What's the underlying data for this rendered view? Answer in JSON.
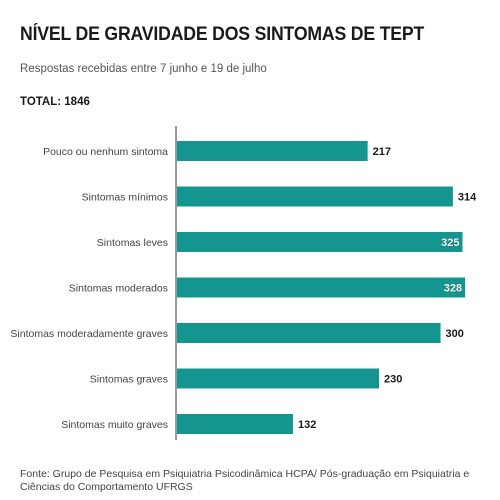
{
  "header": {
    "title": "NÍVEL DE GRAVIDADE DOS SINTOMAS DE TEPT",
    "subtitle": "Respostas recebidas entre 7 junho e 19 de julho",
    "total": "TOTAL: 1846"
  },
  "footer": {
    "source": "Fonte: Grupo de Pesquisa em Psiquiatria Psicodinâmica HCPA/ Pós-graduação em Psiquiatria e Ciências do Comportamento UFRGS"
  },
  "chart_data": {
    "type": "bar",
    "orientation": "horizontal",
    "title": "NÍVEL DE GRAVIDADE DOS SINTOMAS DE TEPT",
    "subtitle": "Respostas recebidas entre 7 junho e 19 de julho",
    "xlabel": "",
    "ylabel": "",
    "xlim": [
      0,
      340
    ],
    "grid": false,
    "legend": "none",
    "bar_color": "#14958f",
    "categories": [
      "Pouco ou nenhum sintoma",
      "Sintomas mínimos",
      "Sintomas leves",
      "Sintomas moderados",
      "Sintomas moderadamente graves",
      "Sintomas graves",
      "Sintomas muito graves"
    ],
    "values": [
      217,
      314,
      325,
      328,
      300,
      230,
      132
    ]
  }
}
